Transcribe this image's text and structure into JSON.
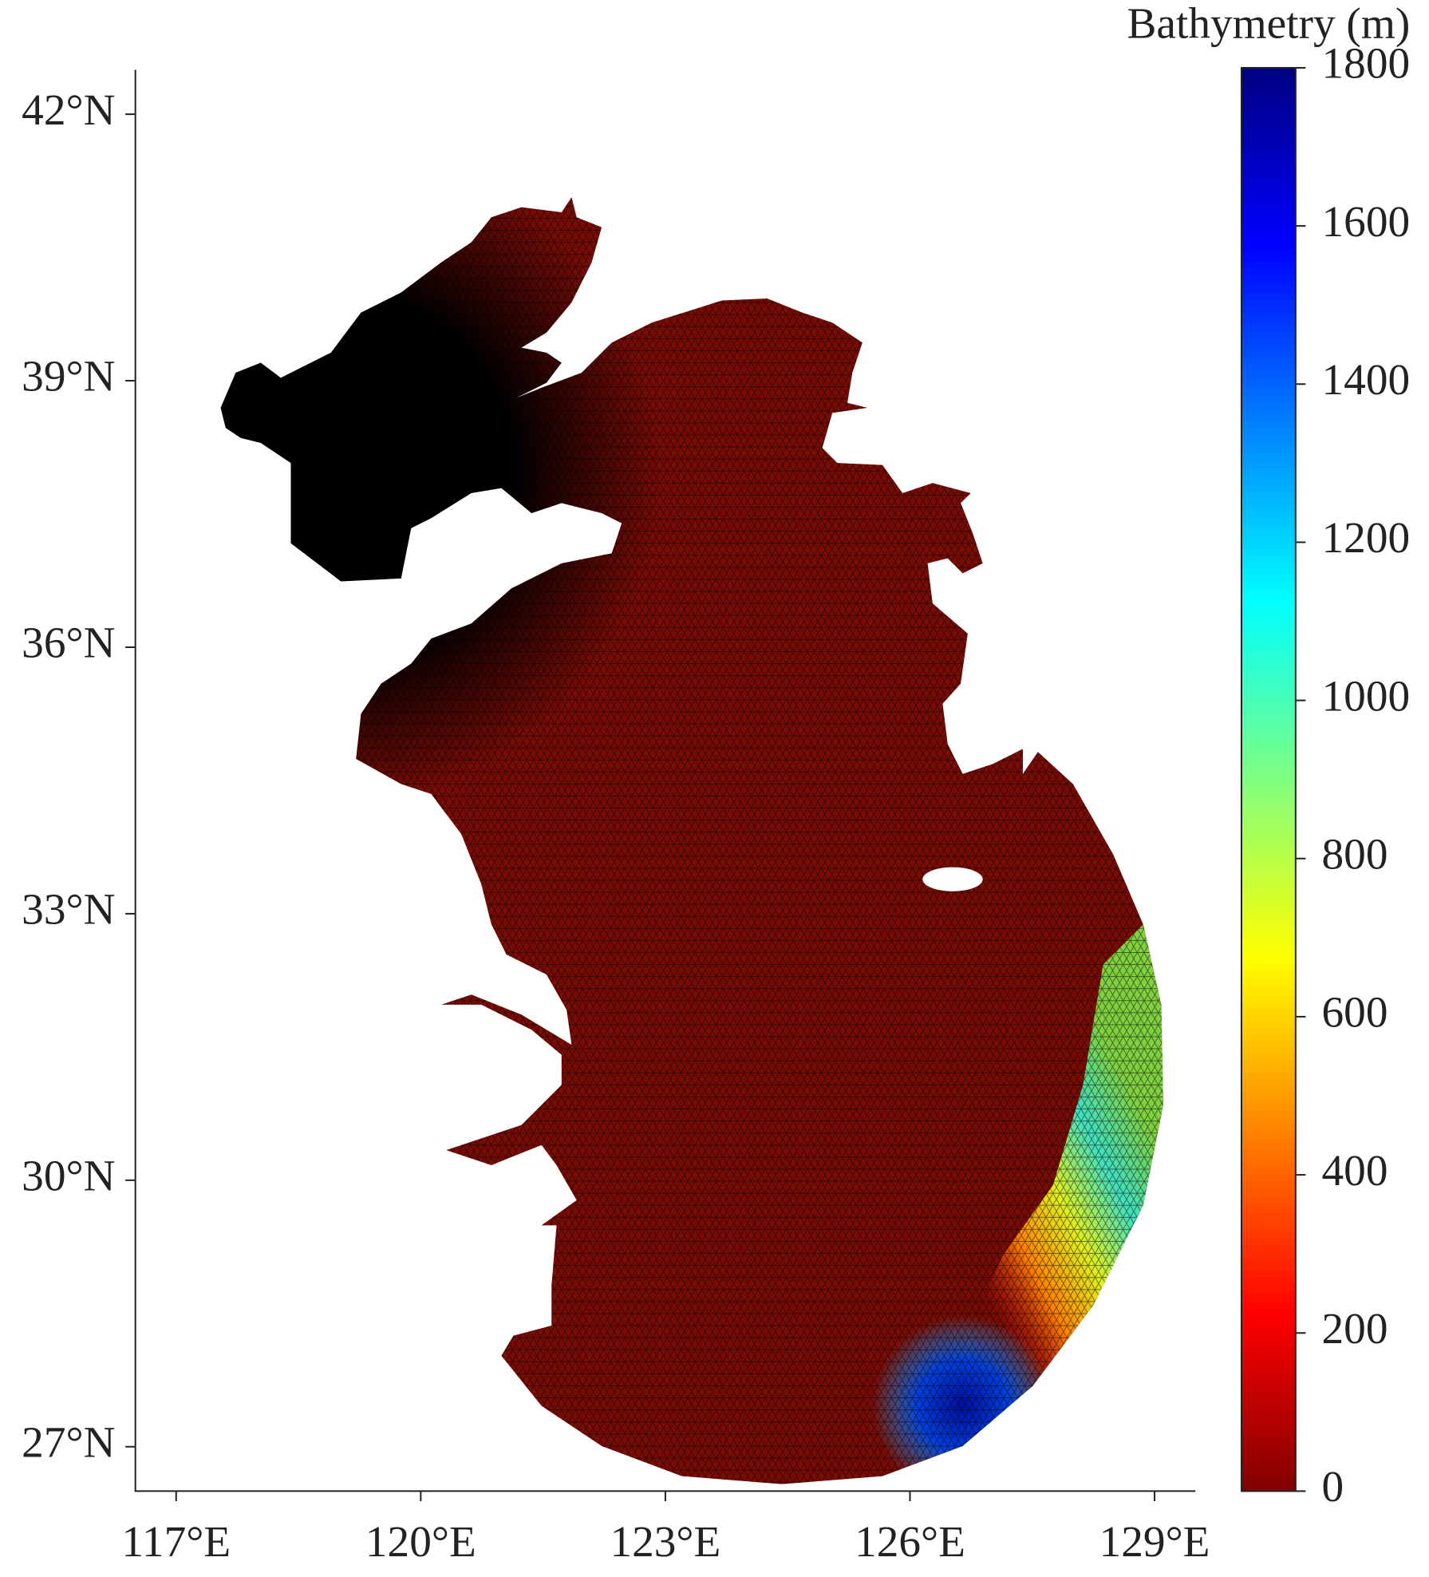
{
  "chart_data": {
    "type": "map",
    "xlim": [
      116.5,
      129.5
    ],
    "ylim": [
      26.5,
      42.5
    ],
    "xticks": [
      {
        "value": 117,
        "label": "117°E"
      },
      {
        "value": 120,
        "label": "120°E"
      },
      {
        "value": 123,
        "label": "123°E"
      },
      {
        "value": 126,
        "label": "126°E"
      },
      {
        "value": 129,
        "label": "129°E"
      }
    ],
    "yticks": [
      {
        "value": 27,
        "label": "27°N"
      },
      {
        "value": 30,
        "label": "30°N"
      },
      {
        "value": 33,
        "label": "33°N"
      },
      {
        "value": 36,
        "label": "36°N"
      },
      {
        "value": 39,
        "label": "39°N"
      },
      {
        "value": 42,
        "label": "42°N"
      }
    ],
    "colorbar": {
      "title": "Bathymetry (m)",
      "lim": [
        0,
        1800
      ],
      "ticks": [
        0,
        200,
        400,
        600,
        800,
        1000,
        1200,
        1400,
        1600,
        1800
      ],
      "colormap": "jet"
    }
  }
}
